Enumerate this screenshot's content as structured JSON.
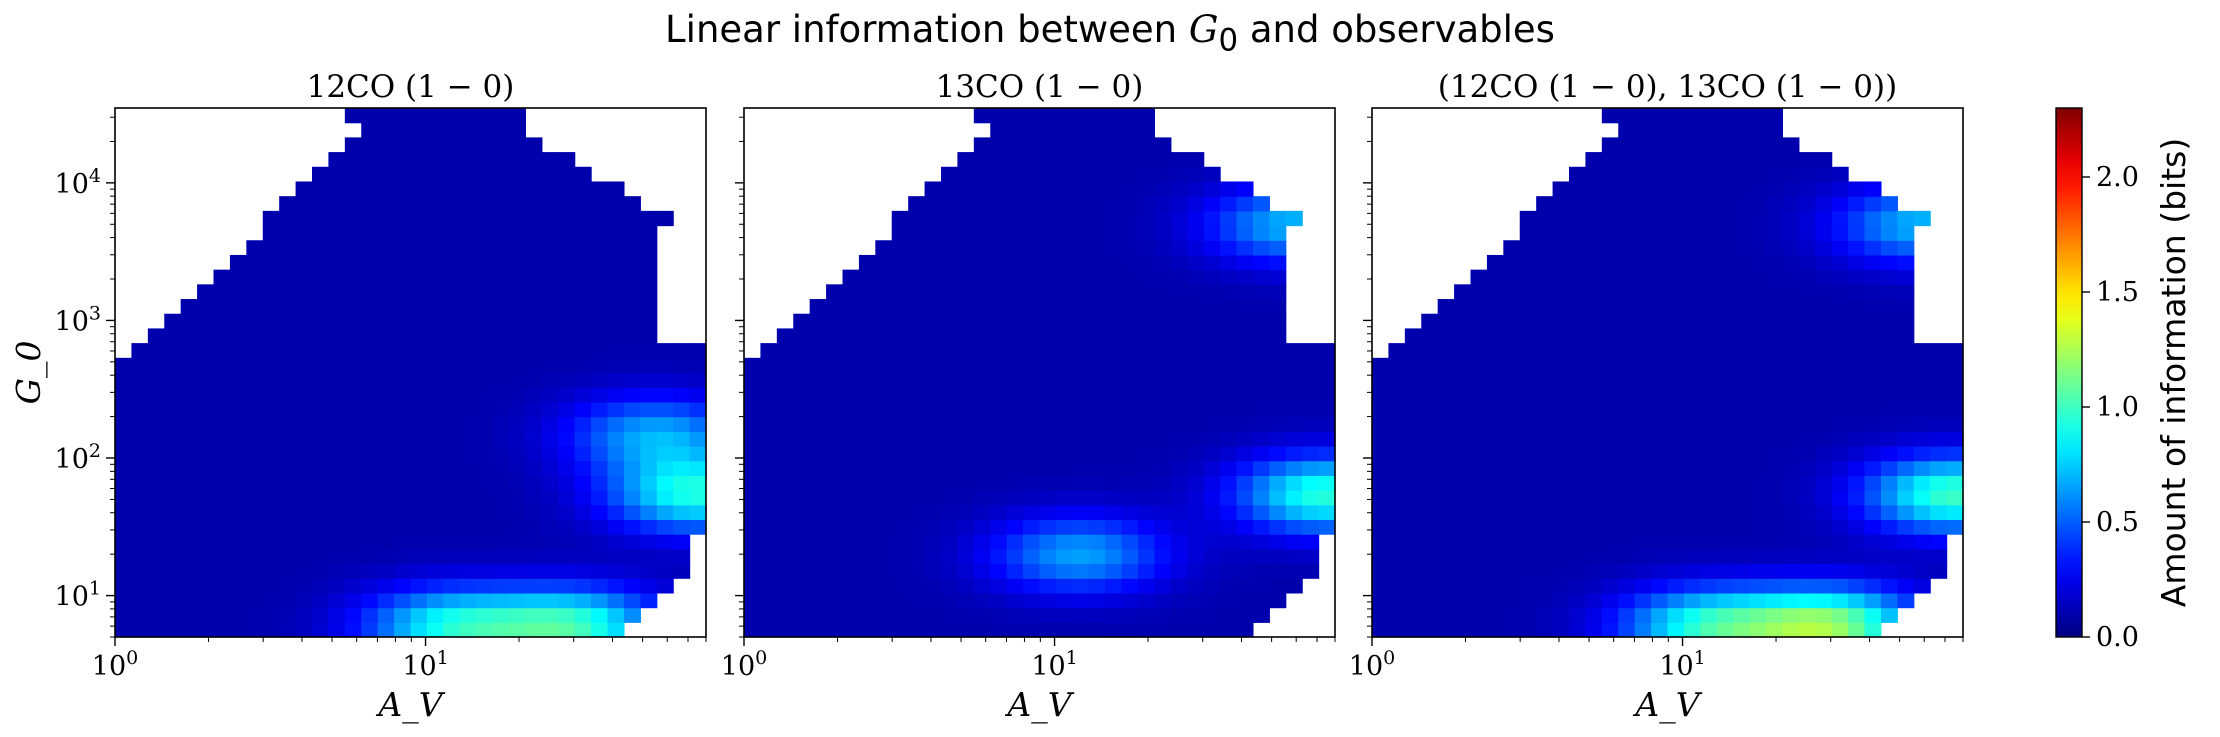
{
  "figure": {
    "title_prefix": "Linear information between ",
    "title_symbol": "G",
    "title_symbol_sub": "0",
    "title_suffix": " and observables"
  },
  "chart_data": [
    {
      "type": "heatmap",
      "title": "12CO (1 − 0)",
      "xlabel": "A_V",
      "ylabel": "G_0",
      "x_scale": "log",
      "y_scale": "log",
      "xlim": [
        1,
        80
      ],
      "ylim": [
        5,
        35000
      ],
      "x_ticks": [
        "10^0",
        "10^1"
      ],
      "y_ticks": [
        "10^1",
        "10^2",
        "10^3",
        "10^4"
      ],
      "hotspots": [
        {
          "Av": 12,
          "G0": 6,
          "value": 0.75
        },
        {
          "Av": 30,
          "G0": 6,
          "value": 0.85
        },
        {
          "Av": 75,
          "G0": 55,
          "value": 0.8
        },
        {
          "Av": 55,
          "G0": 150,
          "value": 0.55
        }
      ],
      "background_value": 0.1
    },
    {
      "type": "heatmap",
      "title": "13CO (1 − 0)",
      "xlabel": "A_V",
      "ylabel": "G_0",
      "x_scale": "log",
      "y_scale": "log",
      "xlim": [
        1,
        80
      ],
      "ylim": [
        5,
        35000
      ],
      "x_ticks": [
        "10^0",
        "10^1"
      ],
      "y_ticks": [
        "10^1",
        "10^2",
        "10^3",
        "10^4"
      ],
      "hotspots": [
        {
          "Av": 12,
          "G0": 20,
          "value": 0.55
        },
        {
          "Av": 75,
          "G0": 55,
          "value": 0.85
        },
        {
          "Av": 60,
          "G0": 5000,
          "value": 0.6
        }
      ],
      "background_value": 0.1
    },
    {
      "type": "heatmap",
      "title": "(12CO (1 − 0), 13CO (1 − 0))",
      "xlabel": "A_V",
      "ylabel": "G_0",
      "x_scale": "log",
      "y_scale": "log",
      "xlim": [
        1,
        80
      ],
      "ylim": [
        5,
        35000
      ],
      "x_ticks": [
        "10^0",
        "10^1"
      ],
      "y_ticks": [
        "10^1",
        "10^2",
        "10^3",
        "10^4"
      ],
      "hotspots": [
        {
          "Av": 12,
          "G0": 6,
          "value": 0.8
        },
        {
          "Av": 30,
          "G0": 6,
          "value": 1.05
        },
        {
          "Av": 75,
          "G0": 55,
          "value": 0.9
        },
        {
          "Av": 60,
          "G0": 5000,
          "value": 0.6
        }
      ],
      "background_value": 0.1
    }
  ],
  "colorbar": {
    "label": "Amount of information (bits)",
    "range": [
      0,
      2.3
    ],
    "ticks": [
      "0.0",
      "0.5",
      "1.0",
      "1.5",
      "2.0"
    ],
    "tick_values": [
      0,
      0.5,
      1.0,
      1.5,
      2.0
    ],
    "colormap": "jet"
  }
}
